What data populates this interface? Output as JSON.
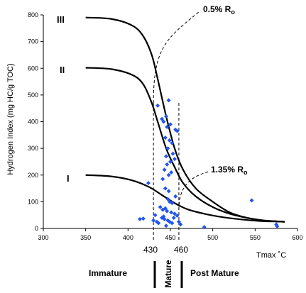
{
  "chart_data": {
    "type": "scatter",
    "xlabel": "Tmax ˚C",
    "ylabel": "Hydrogen Index (mg HC/g TOC)",
    "xlim": [
      300,
      600
    ],
    "ylim": [
      0,
      800
    ],
    "x_ticks": [
      "300",
      "350",
      "400",
      "450",
      "500",
      "550",
      "600"
    ],
    "y_ticks": [
      "0",
      "100",
      "200",
      "300",
      "400",
      "500",
      "600",
      "700",
      "800"
    ],
    "point_color": "#2255ee",
    "points": [
      [
        435,
        460
      ],
      [
        440,
        410
      ],
      [
        442,
        400
      ],
      [
        445,
        420
      ],
      [
        448,
        480
      ],
      [
        446,
        380
      ],
      [
        450,
        390
      ],
      [
        456,
        370
      ],
      [
        458,
        365
      ],
      [
        444,
        340
      ],
      [
        449,
        330
      ],
      [
        452,
        320
      ],
      [
        447,
        300
      ],
      [
        453,
        280
      ],
      [
        445,
        270
      ],
      [
        450,
        250
      ],
      [
        446,
        240
      ],
      [
        455,
        260
      ],
      [
        443,
        220
      ],
      [
        448,
        200
      ],
      [
        451,
        210
      ],
      [
        441,
        185
      ],
      [
        424,
        170
      ],
      [
        444,
        150
      ],
      [
        448,
        140
      ],
      [
        456,
        120
      ],
      [
        447,
        110
      ],
      [
        449,
        100
      ],
      [
        452,
        95
      ],
      [
        438,
        80
      ],
      [
        441,
        70
      ],
      [
        444,
        75
      ],
      [
        446,
        65
      ],
      [
        451,
        60
      ],
      [
        455,
        55
      ],
      [
        458,
        48
      ],
      [
        432,
        50
      ],
      [
        440,
        40
      ],
      [
        443,
        35
      ],
      [
        447,
        30
      ],
      [
        449,
        25
      ],
      [
        452,
        20
      ],
      [
        414,
        35
      ],
      [
        418,
        37
      ],
      [
        430,
        30
      ],
      [
        434,
        25
      ],
      [
        436,
        20
      ],
      [
        442,
        45
      ],
      [
        454,
        40
      ],
      [
        460,
        25
      ],
      [
        462,
        15
      ],
      [
        445,
        10
      ],
      [
        490,
        5
      ],
      [
        546,
        105
      ],
      [
        575,
        15
      ],
      [
        576,
        8
      ]
    ],
    "curves": [
      {
        "name": "III",
        "points": [
          [
            350,
            790
          ],
          [
            380,
            785
          ],
          [
            405,
            760
          ],
          [
            418,
            720
          ],
          [
            428,
            650
          ],
          [
            435,
            560
          ],
          [
            445,
            420
          ],
          [
            455,
            300
          ],
          [
            465,
            220
          ],
          [
            480,
            150
          ],
          [
            500,
            100
          ],
          [
            520,
            60
          ],
          [
            540,
            40
          ],
          [
            560,
            30
          ],
          [
            585,
            25
          ]
        ]
      },
      {
        "name": "II",
        "points": [
          [
            350,
            602
          ],
          [
            380,
            597
          ],
          [
            405,
            575
          ],
          [
            418,
            540
          ],
          [
            428,
            470
          ],
          [
            435,
            400
          ],
          [
            445,
            300
          ],
          [
            455,
            230
          ],
          [
            465,
            170
          ],
          [
            480,
            120
          ],
          [
            500,
            80
          ],
          [
            520,
            55
          ],
          [
            540,
            40
          ],
          [
            560,
            30
          ],
          [
            585,
            25
          ]
        ]
      },
      {
        "name": "I",
        "points": [
          [
            350,
            200
          ],
          [
            380,
            195
          ],
          [
            405,
            180
          ],
          [
            425,
            155
          ],
          [
            440,
            125
          ],
          [
            455,
            95
          ],
          [
            470,
            72
          ],
          [
            490,
            55
          ],
          [
            510,
            43
          ],
          [
            530,
            35
          ],
          [
            555,
            28
          ],
          [
            585,
            25
          ]
        ]
      }
    ],
    "ro_lines": [
      {
        "label": "0.5% R",
        "subscript": "o",
        "tmax": "430"
      },
      {
        "label": "1.35% R",
        "subscript": "o",
        "tmax": "460"
      }
    ],
    "zones": [
      "Immature",
      "Mature",
      "Post Mature"
    ]
  }
}
